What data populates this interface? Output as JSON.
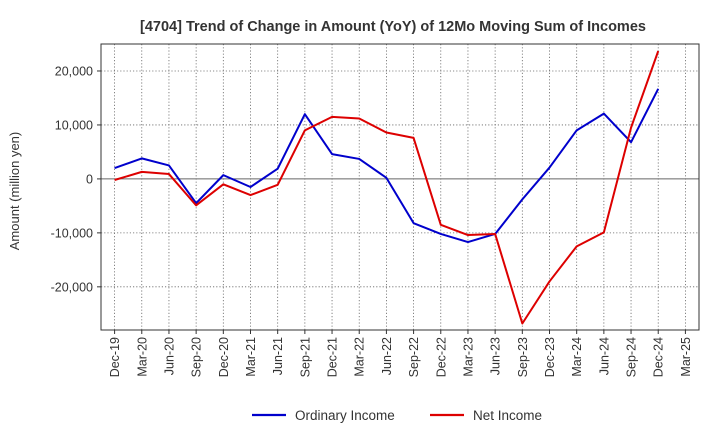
{
  "chart_data": {
    "type": "line",
    "title": "[4704]  Trend of Change in Amount (YoY) of 12Mo Moving Sum of Incomes",
    "xlabel": "",
    "ylabel": "Amount (million yen)",
    "ylim": [
      -28000,
      25000
    ],
    "y_ticks": [
      20000,
      10000,
      0,
      -10000,
      -20000
    ],
    "y_tick_labels": [
      "20,000",
      "10,000",
      "0",
      "-10,000",
      "-20,000"
    ],
    "x_tick_labels": [
      "Dec-19",
      "Mar-20",
      "Jun-20",
      "Sep-20",
      "Dec-20",
      "Mar-21",
      "Jun-21",
      "Sep-21",
      "Dec-21",
      "Mar-22",
      "Jun-22",
      "Sep-22",
      "Dec-22",
      "Mar-23",
      "Jun-23",
      "Sep-23",
      "Dec-23",
      "Mar-24",
      "Jun-24",
      "Sep-24",
      "Dec-24",
      "Mar-25"
    ],
    "grid": true,
    "legend_position": "bottom",
    "series": [
      {
        "name": "Ordinary Income",
        "color": "#0000cc",
        "values": [
          2000,
          3800,
          2500,
          -4500,
          700,
          -1500,
          1900,
          12000,
          4600,
          3700,
          200,
          -8200,
          -10200,
          -11700,
          -10200,
          -3800,
          2100,
          9000,
          12100,
          6800,
          16700,
          null
        ]
      },
      {
        "name": "Net Income",
        "color": "#dd0000",
        "values": [
          -200,
          1300,
          900,
          -4900,
          -1000,
          -3000,
          -1100,
          9000,
          11500,
          11200,
          8600,
          7600,
          -8500,
          -10400,
          -10200,
          -26800,
          -19000,
          -12500,
          -9900,
          9500,
          23700,
          null
        ]
      }
    ]
  }
}
